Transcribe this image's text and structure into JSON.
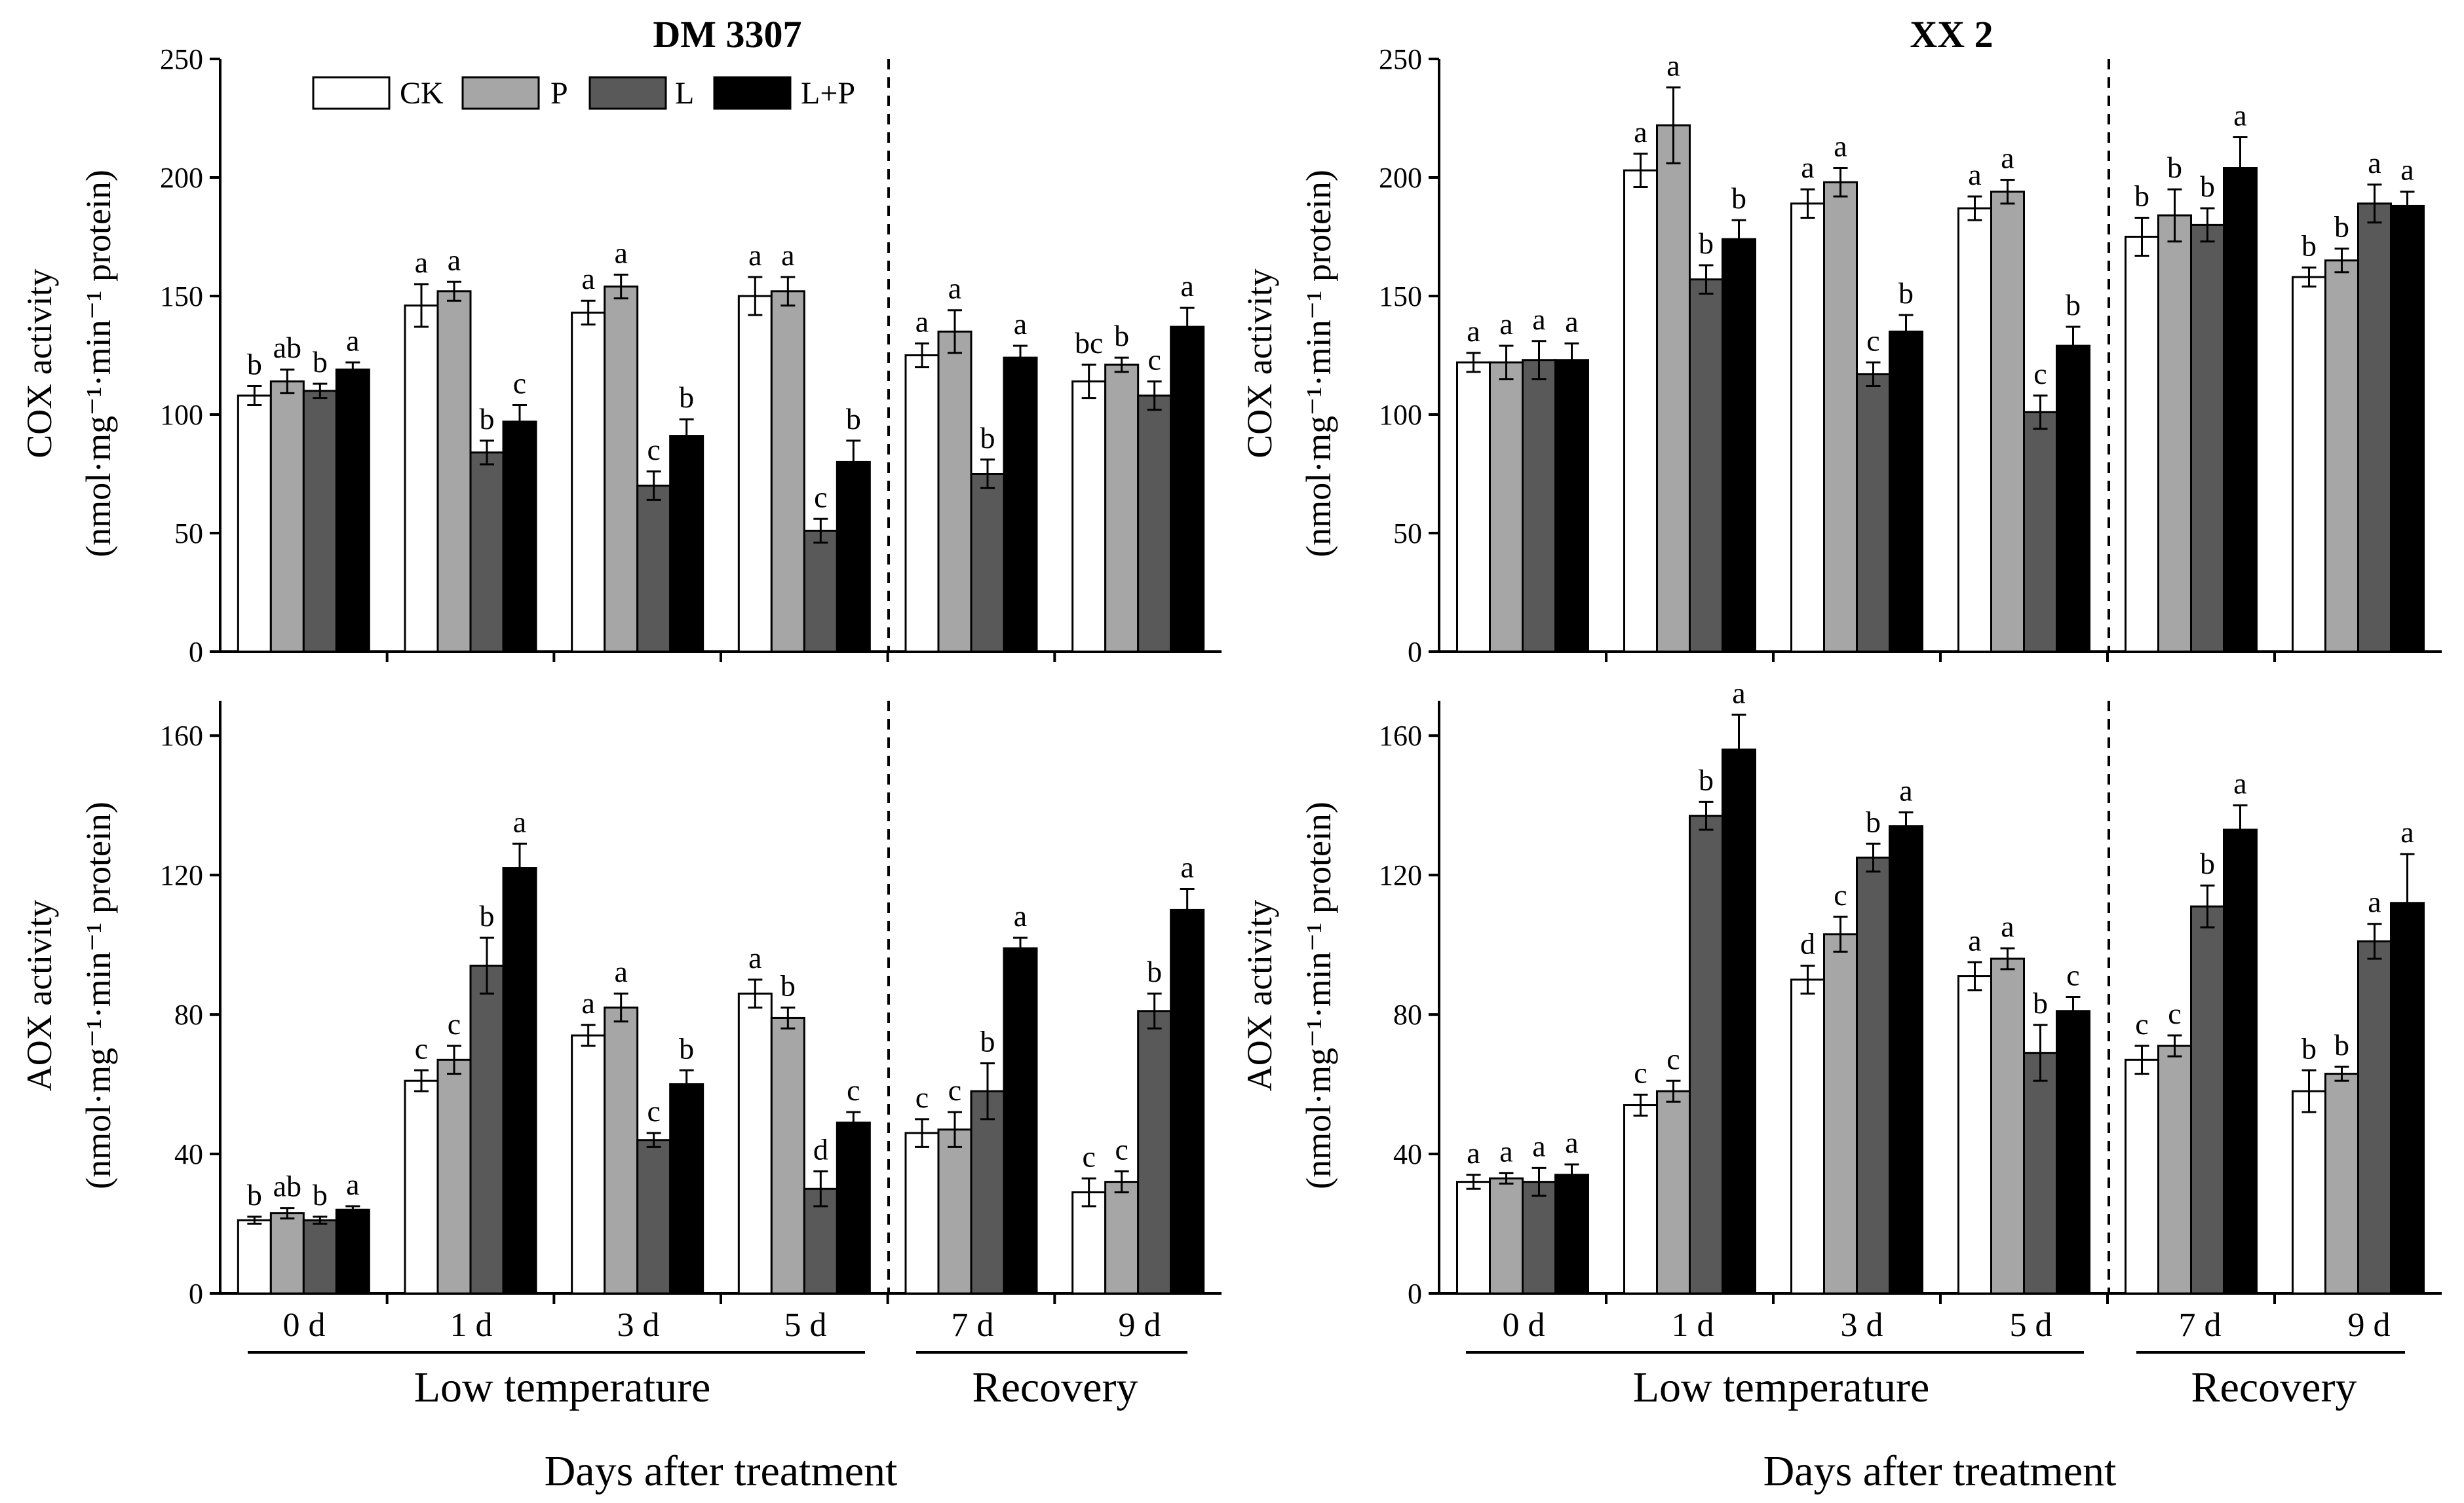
{
  "figure": {
    "legend": [
      {
        "key": "CK",
        "label": "CK",
        "color": "#ffffff"
      },
      {
        "key": "P",
        "label": "P",
        "color": "#a6a6a6"
      },
      {
        "key": "L",
        "label": "L",
        "color": "#595959"
      },
      {
        "key": "LP",
        "label": "L+P",
        "color": "#000000"
      }
    ],
    "days": [
      "0 d",
      "1 d",
      "3 d",
      "5 d",
      "7 d",
      "9 d"
    ],
    "groups": [
      {
        "label": "Low temperature",
        "days": [
          "0 d",
          "1 d",
          "3 d",
          "5 d"
        ]
      },
      {
        "label": "Recovery",
        "days": [
          "7 d",
          "9 d"
        ]
      }
    ],
    "xlabel": "Days after treatment",
    "titles": [
      "DM 3307",
      "XX 2"
    ],
    "cox_ylabel": {
      "line1": "COX activity",
      "line2": "(nmol·mg⁻¹·min⁻¹ protein)"
    },
    "aox_ylabel": {
      "line1": "AOX activity",
      "line2": "(nmol·mg⁻¹·min⁻¹ protein)"
    }
  },
  "chart_data": [
    {
      "type": "bar",
      "title": "DM 3307",
      "ylabel": "COX activity (nmol·mg⁻¹·min⁻¹ protein)",
      "xlabel": "Days after treatment",
      "categories": [
        "0 d",
        "1 d",
        "3 d",
        "5 d",
        "7 d",
        "9 d"
      ],
      "ylim": [
        0,
        250
      ],
      "yticks": [
        0,
        50,
        100,
        150,
        200,
        250
      ],
      "series": [
        {
          "name": "CK",
          "values": [
            108,
            146,
            143,
            150,
            125,
            114
          ],
          "errors": [
            4,
            9,
            5,
            8,
            5,
            7
          ],
          "letters": [
            "b",
            "a",
            "a",
            "a",
            "a",
            "bc"
          ]
        },
        {
          "name": "P",
          "values": [
            114,
            152,
            154,
            152,
            135,
            121
          ],
          "errors": [
            5,
            4,
            5,
            6,
            9,
            3
          ],
          "letters": [
            "ab",
            "a",
            "a",
            "a",
            "a",
            "b"
          ]
        },
        {
          "name": "L",
          "values": [
            110,
            84,
            70,
            51,
            75,
            108
          ],
          "errors": [
            3,
            5,
            6,
            5,
            6,
            6
          ],
          "letters": [
            "b",
            "b",
            "c",
            "c",
            "b",
            "c"
          ]
        },
        {
          "name": "L+P",
          "values": [
            119,
            97,
            91,
            80,
            124,
            137
          ],
          "errors": [
            3,
            7,
            7,
            9,
            5,
            8
          ],
          "letters": [
            "a",
            "c",
            "b",
            "b",
            "a",
            "a"
          ]
        }
      ]
    },
    {
      "type": "bar",
      "title": "XX 2",
      "ylabel": "COX activity (nmol·mg⁻¹·min⁻¹ protein)",
      "xlabel": "Days after treatment",
      "categories": [
        "0 d",
        "1 d",
        "3 d",
        "5 d",
        "7 d",
        "9 d"
      ],
      "ylim": [
        0,
        250
      ],
      "yticks": [
        0,
        50,
        100,
        150,
        200,
        250
      ],
      "series": [
        {
          "name": "CK",
          "values": [
            122,
            203,
            189,
            187,
            175,
            158
          ],
          "errors": [
            4,
            7,
            6,
            5,
            8,
            4
          ],
          "letters": [
            "a",
            "a",
            "a",
            "a",
            "b",
            "b"
          ]
        },
        {
          "name": "P",
          "values": [
            122,
            222,
            198,
            194,
            184,
            165
          ],
          "errors": [
            7,
            16,
            6,
            5,
            11,
            5
          ],
          "letters": [
            "a",
            "a",
            "a",
            "a",
            "b",
            "b"
          ]
        },
        {
          "name": "L",
          "values": [
            123,
            157,
            117,
            101,
            180,
            189
          ],
          "errors": [
            8,
            6,
            5,
            7,
            7,
            8
          ],
          "letters": [
            "a",
            "b",
            "c",
            "c",
            "b",
            "a"
          ]
        },
        {
          "name": "L+P",
          "values": [
            123,
            174,
            135,
            129,
            204,
            188
          ],
          "errors": [
            7,
            8,
            7,
            8,
            13,
            6
          ],
          "letters": [
            "a",
            "b",
            "b",
            "b",
            "a",
            "a"
          ]
        }
      ]
    },
    {
      "type": "bar",
      "title": "",
      "ylabel": "AOX activity (nmol·mg⁻¹·min⁻¹ protein)",
      "xlabel": "Days after treatment",
      "categories": [
        "0 d",
        "1 d",
        "3 d",
        "5 d",
        "7 d",
        "9 d"
      ],
      "ylim": [
        0,
        170
      ],
      "yticks": [
        0,
        40,
        80,
        120,
        160
      ],
      "series": [
        {
          "name": "CK",
          "values": [
            21,
            61,
            74,
            86,
            46,
            29
          ],
          "errors": [
            1,
            3,
            3,
            4,
            4,
            4
          ],
          "letters": [
            "b",
            "c",
            "a",
            "a",
            "c",
            "c"
          ]
        },
        {
          "name": "P",
          "values": [
            23,
            67,
            82,
            79,
            47,
            32
          ],
          "errors": [
            1.5,
            4,
            4,
            3,
            5,
            3
          ],
          "letters": [
            "ab",
            "c",
            "a",
            "b",
            "c",
            "c"
          ]
        },
        {
          "name": "L",
          "values": [
            21,
            94,
            44,
            30,
            58,
            81
          ],
          "errors": [
            1,
            8,
            2,
            5,
            8,
            5
          ],
          "letters": [
            "b",
            "b",
            "c",
            "d",
            "b",
            "b"
          ]
        },
        {
          "name": "L+P",
          "values": [
            24,
            122,
            60,
            49,
            99,
            110
          ],
          "errors": [
            1,
            7,
            4,
            3,
            3,
            6
          ],
          "letters": [
            "a",
            "a",
            "b",
            "c",
            "a",
            "a"
          ]
        }
      ]
    },
    {
      "type": "bar",
      "title": "",
      "ylabel": "AOX activity (nmol·mg⁻¹·min⁻¹ protein)",
      "xlabel": "Days after treatment",
      "categories": [
        "0 d",
        "1 d",
        "3 d",
        "5 d",
        "7 d",
        "9 d"
      ],
      "ylim": [
        0,
        170
      ],
      "yticks": [
        0,
        40,
        80,
        120,
        160
      ],
      "series": [
        {
          "name": "CK",
          "values": [
            32,
            54,
            90,
            91,
            67,
            58
          ],
          "errors": [
            2,
            3,
            4,
            4,
            4,
            6
          ],
          "letters": [
            "a",
            "c",
            "d",
            "a",
            "c",
            "b"
          ]
        },
        {
          "name": "P",
          "values": [
            33,
            58,
            103,
            96,
            71,
            63
          ],
          "errors": [
            1.5,
            3,
            5,
            3,
            3,
            2
          ],
          "letters": [
            "a",
            "c",
            "c",
            "a",
            "c",
            "b"
          ]
        },
        {
          "name": "L",
          "values": [
            32,
            137,
            125,
            69,
            111,
            101
          ],
          "errors": [
            4,
            4,
            4,
            8,
            6,
            5
          ],
          "letters": [
            "a",
            "b",
            "b",
            "b",
            "b",
            "a"
          ]
        },
        {
          "name": "L+P",
          "values": [
            34,
            156,
            134,
            81,
            133,
            112
          ],
          "errors": [
            3,
            10,
            4,
            4,
            7,
            14
          ],
          "letters": [
            "a",
            "a",
            "a",
            "c",
            "a",
            "a"
          ]
        }
      ]
    }
  ]
}
